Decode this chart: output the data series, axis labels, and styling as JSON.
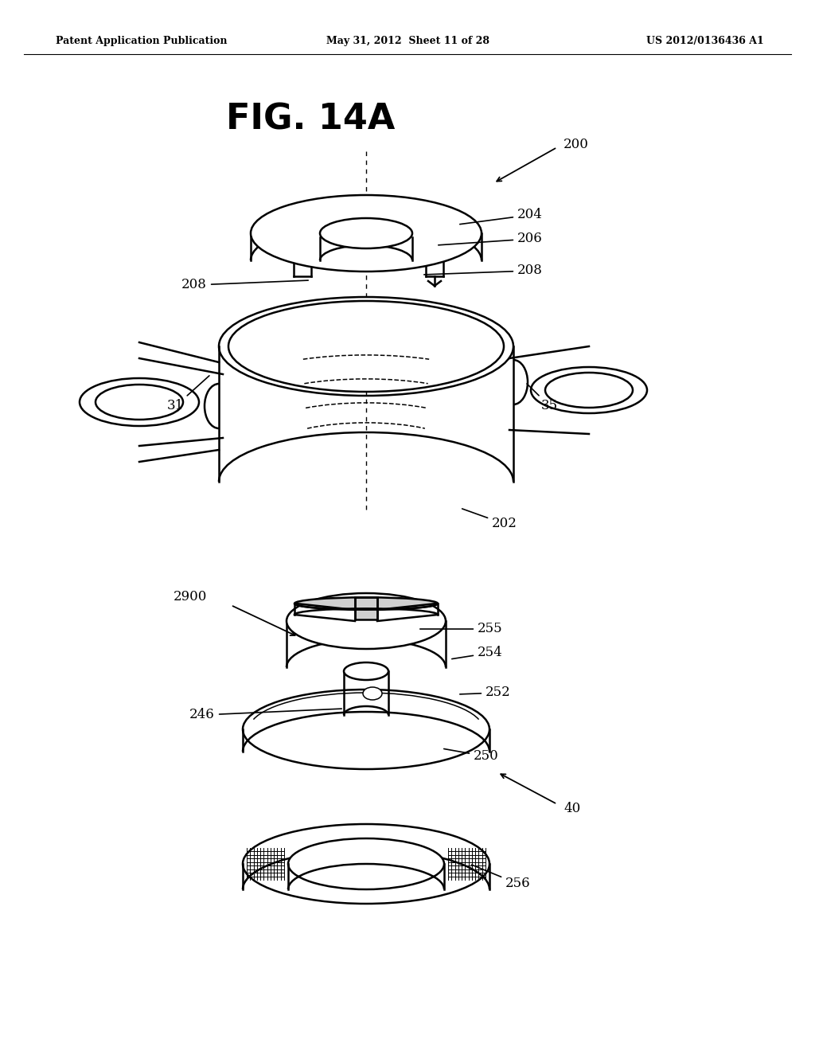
{
  "bg_color": "#ffffff",
  "line_color": "#000000",
  "header_left": "Patent Application Publication",
  "header_mid": "May 31, 2012  Sheet 11 of 28",
  "header_right": "US 2012/0136436 A1",
  "fig_title": "FIG. 14A"
}
